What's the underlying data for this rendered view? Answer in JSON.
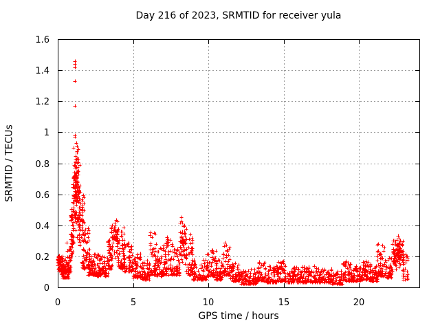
{
  "chart_data": {
    "type": "scatter",
    "title": "Day 216 of 2023, SRMTID for receiver yula",
    "xlabel": "GPS time / hours",
    "ylabel": "SRMTID / TECUs",
    "xlim": [
      0,
      24
    ],
    "ylim": [
      0,
      1.6
    ],
    "xticks": [
      {
        "v": 0,
        "label": "0"
      },
      {
        "v": 5,
        "label": "5"
      },
      {
        "v": 10,
        "label": "10"
      },
      {
        "v": 15,
        "label": "15"
      },
      {
        "v": 20,
        "label": "20"
      }
    ],
    "yticks": [
      {
        "v": 0,
        "label": "0"
      },
      {
        "v": 0.2,
        "label": "0.2"
      },
      {
        "v": 0.4,
        "label": "0.4"
      },
      {
        "v": 0.6,
        "label": "0.6"
      },
      {
        "v": 0.8,
        "label": "0.8"
      },
      {
        "v": 1,
        "label": "1"
      },
      {
        "v": 1.2,
        "label": "1.2"
      },
      {
        "v": 1.4,
        "label": "1.4"
      },
      {
        "v": 1.6,
        "label": "1.6"
      }
    ],
    "grid": true,
    "legend_position": "none",
    "frame_color": "#000000",
    "grid_color": "#999999",
    "background": "#ffffff",
    "series": [
      {
        "name": "SRMTID",
        "marker_shape": "plus",
        "marker_color": "#ff0000",
        "marker_size": 5,
        "band_format": [
          "hour_start",
          "hour_end",
          "y_min",
          "y_max",
          "n_points",
          "bias_0low_1mid_2high"
        ],
        "bands": [
          [
            0.0,
            0.35,
            0.12,
            0.22,
            45,
            1
          ],
          [
            0.05,
            0.45,
            0.08,
            0.15,
            40,
            1
          ],
          [
            0.3,
            0.75,
            0.06,
            0.18,
            65,
            0
          ],
          [
            0.6,
            0.9,
            0.1,
            0.3,
            40,
            0
          ],
          [
            0.85,
            1.05,
            0.15,
            0.55,
            45,
            1
          ],
          [
            1.0,
            1.45,
            0.28,
            0.9,
            95,
            1
          ],
          [
            1.08,
            1.38,
            0.55,
            0.88,
            45,
            1
          ],
          [
            1.35,
            1.75,
            0.22,
            0.65,
            55,
            1
          ],
          [
            1.6,
            2.1,
            0.12,
            0.4,
            60,
            0
          ],
          [
            2.0,
            2.6,
            0.08,
            0.22,
            70,
            0
          ],
          [
            2.6,
            3.35,
            0.07,
            0.22,
            75,
            0
          ],
          [
            3.3,
            3.6,
            0.12,
            0.35,
            40,
            0
          ],
          [
            3.55,
            4.0,
            0.15,
            0.53,
            60,
            1
          ],
          [
            4.0,
            4.4,
            0.12,
            0.4,
            50,
            0
          ],
          [
            4.4,
            5.0,
            0.1,
            0.3,
            60,
            0
          ],
          [
            5.0,
            5.6,
            0.06,
            0.22,
            60,
            0
          ],
          [
            5.6,
            6.1,
            0.05,
            0.18,
            50,
            0
          ],
          [
            6.1,
            6.55,
            0.08,
            0.38,
            48,
            0
          ],
          [
            6.55,
            7.05,
            0.07,
            0.27,
            50,
            0
          ],
          [
            7.0,
            7.7,
            0.08,
            0.33,
            65,
            0
          ],
          [
            7.7,
            8.1,
            0.08,
            0.25,
            45,
            0
          ],
          [
            8.1,
            8.55,
            0.12,
            0.47,
            60,
            1
          ],
          [
            8.5,
            8.95,
            0.08,
            0.35,
            50,
            0
          ],
          [
            8.95,
            9.9,
            0.05,
            0.18,
            85,
            0
          ],
          [
            9.9,
            10.5,
            0.07,
            0.24,
            60,
            0
          ],
          [
            10.5,
            10.9,
            0.05,
            0.18,
            45,
            0
          ],
          [
            10.9,
            11.45,
            0.08,
            0.3,
            58,
            0
          ],
          [
            11.45,
            12.1,
            0.04,
            0.16,
            60,
            0
          ],
          [
            12.1,
            13.2,
            0.02,
            0.12,
            95,
            0
          ],
          [
            13.2,
            13.8,
            0.04,
            0.17,
            55,
            0
          ],
          [
            13.8,
            14.6,
            0.03,
            0.14,
            70,
            0
          ],
          [
            14.6,
            15.2,
            0.04,
            0.17,
            55,
            0
          ],
          [
            15.2,
            16.2,
            0.03,
            0.13,
            85,
            0
          ],
          [
            16.2,
            17.2,
            0.03,
            0.14,
            85,
            0
          ],
          [
            17.2,
            18.2,
            0.03,
            0.12,
            85,
            0
          ],
          [
            18.2,
            18.9,
            0.02,
            0.11,
            60,
            0
          ],
          [
            18.9,
            19.5,
            0.04,
            0.17,
            55,
            0
          ],
          [
            19.5,
            20.2,
            0.04,
            0.14,
            62,
            0
          ],
          [
            20.2,
            20.6,
            0.05,
            0.17,
            45,
            0
          ],
          [
            20.6,
            21.2,
            0.04,
            0.15,
            55,
            0
          ],
          [
            21.2,
            21.7,
            0.07,
            0.28,
            56,
            0
          ],
          [
            21.7,
            22.2,
            0.06,
            0.2,
            48,
            0
          ],
          [
            22.2,
            22.7,
            0.08,
            0.32,
            55,
            1
          ],
          [
            22.5,
            22.95,
            0.1,
            0.35,
            48,
            1
          ],
          [
            22.9,
            23.25,
            0.05,
            0.22,
            30,
            0
          ]
        ],
        "outlier_points": [
          [
            1.12,
            1.46
          ],
          [
            1.14,
            1.44
          ],
          [
            1.13,
            1.42
          ],
          [
            1.15,
            1.33
          ],
          [
            1.13,
            1.17
          ],
          [
            1.15,
            1.17
          ],
          [
            1.14,
            0.98
          ],
          [
            1.16,
            0.97
          ],
          [
            1.05,
            0.9
          ],
          [
            1.22,
            0.93
          ],
          [
            1.28,
            0.91
          ],
          [
            1.35,
            0.89
          ]
        ]
      }
    ]
  }
}
